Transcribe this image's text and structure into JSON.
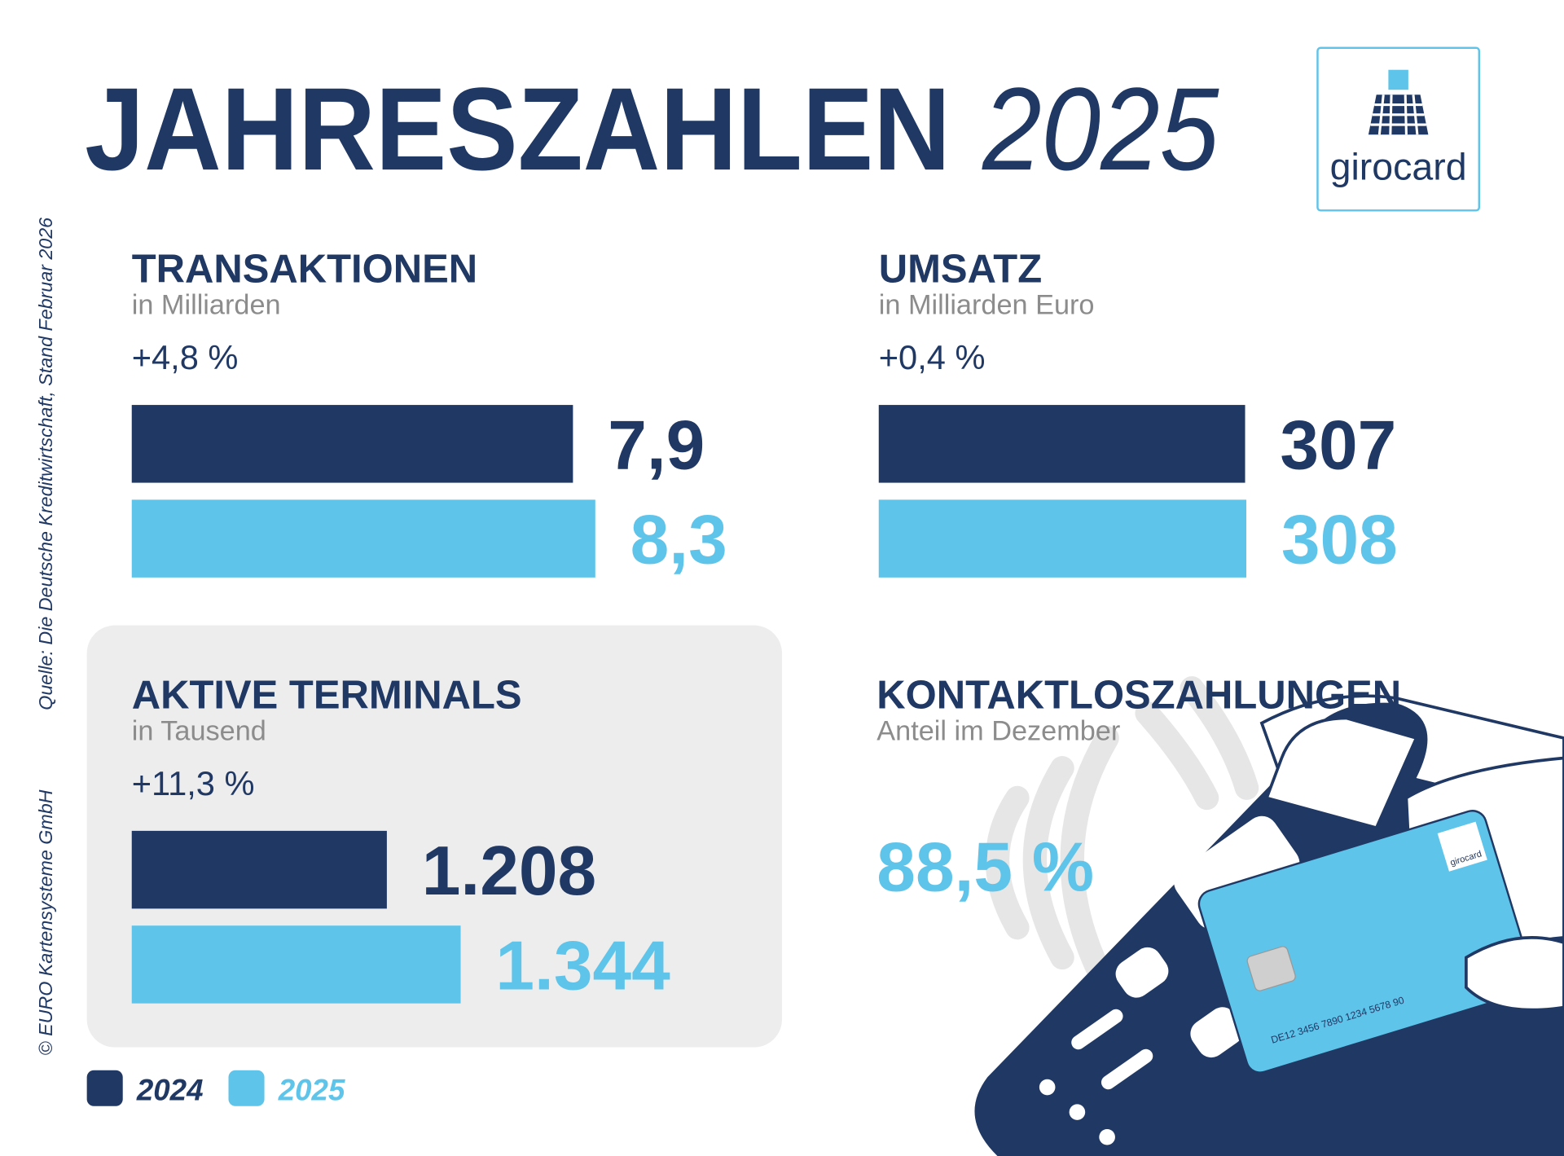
{
  "header": {
    "title": "JAHRESZAHLEN",
    "year": "2025",
    "logo": "girocard"
  },
  "source": "Quelle: Die Deutsche Kreditwirtschaft, Stand Februar 2026",
  "copyright": "© EURO Kartensysteme GmbH",
  "card": {
    "logo": "girocard",
    "iban": "DE12 3456 7890 1234 5678 90"
  },
  "chart_data": [
    {
      "type": "bar",
      "title": "TRANSAKTIONEN",
      "subtitle": "in Milliarden",
      "annotation": "+4,8 %",
      "xlim": [
        0,
        10
      ],
      "series": [
        {
          "name": "2024",
          "color": "#203864",
          "values": [
            7.9
          ],
          "value_labels": [
            "7,9"
          ]
        },
        {
          "name": "2025",
          "color": "#5ec4ea",
          "values": [
            8.3
          ],
          "value_labels": [
            "8,3"
          ]
        }
      ]
    },
    {
      "type": "bar",
      "title": "UMSATZ",
      "subtitle": "in Milliarden Euro",
      "annotation": "+0,4 %",
      "xlim": [
        0,
        468
      ],
      "series": [
        {
          "color": "#203864",
          "values": [
            307
          ]
        },
        {
          "color": "#5ec4ea",
          "values": [
            308
          ]
        }
      ]
    },
    {
      "type": "bar",
      "title": "AKTIVE TERMINALS",
      "subtitle": "in Tausend",
      "annotation": "+11,3 %",
      "xlim": [
        738,
        1767
      ],
      "series": [
        {
          "color": "#203864",
          "values": [
            1208
          ],
          "value_labels": [
            "1.208"
          ]
        },
        {
          "color": "#5ec4ea",
          "values": [
            1344
          ],
          "value_labels": [
            "1.344"
          ]
        }
      ]
    },
    {
      "type": "kpi",
      "title": "KONTAKTLOSZAHLUNGEN",
      "subtitle": "Anteil im Dezember",
      "color": "#5ec4ea",
      "values": [
        88.5
      ],
      "value_labels": [
        "88,5 %"
      ]
    }
  ]
}
